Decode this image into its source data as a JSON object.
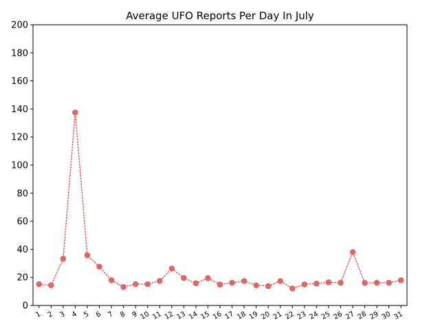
{
  "chart_data": {
    "type": "line",
    "title": "Average UFO Reports Per Day In July",
    "xlabel": "",
    "ylabel": "",
    "ylim": [
      0,
      200
    ],
    "yticks": [
      0,
      20,
      40,
      60,
      80,
      100,
      120,
      140,
      160,
      180,
      200
    ],
    "x": [
      1,
      2,
      3,
      4,
      5,
      6,
      7,
      8,
      9,
      10,
      11,
      12,
      13,
      14,
      15,
      16,
      17,
      18,
      19,
      20,
      21,
      22,
      23,
      24,
      25,
      26,
      27,
      28,
      29,
      30,
      31
    ],
    "xtick_labels": [
      "1",
      "2",
      "3",
      "4",
      "5",
      "6",
      "7",
      "8",
      "9",
      "10",
      "11",
      "12",
      "13",
      "14",
      "15",
      "16",
      "17",
      "18",
      "19",
      "20",
      "21",
      "22",
      "23",
      "24",
      "25",
      "26",
      "27",
      "28",
      "29",
      "30",
      "31"
    ],
    "series": [
      {
        "values": [
          15.2,
          14.4,
          33.3,
          137.5,
          35.8,
          27.7,
          18.0,
          13.2,
          15.2,
          15.2,
          17.5,
          26.3,
          19.6,
          15.8,
          19.5,
          14.9,
          16.2,
          17.4,
          14.4,
          13.8,
          17.4,
          12.1,
          15.0,
          15.6,
          16.5,
          16.2,
          38.0,
          16.1,
          16.2,
          16.2,
          18.0
        ],
        "color": "#e06666",
        "line_style": "dotted",
        "marker": "circle"
      }
    ],
    "grid": false,
    "legend": "none"
  }
}
